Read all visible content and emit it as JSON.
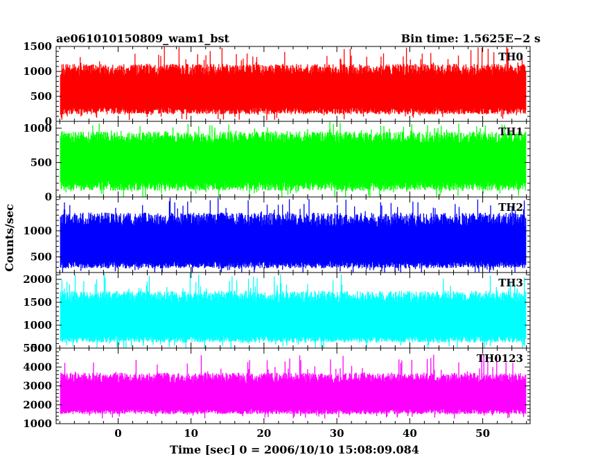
{
  "header": {
    "title": "ae061010150809_wam1_bst",
    "bin_time": "Bin time: 1.5625E−2 s"
  },
  "chart_data": {
    "type": "line",
    "subtype": "stacked light curves",
    "xlabel": "Time [sec] 0 = 2006/10/10 15:08:09.084",
    "ylabel": "Counts/sec",
    "xlim": [
      -8.5,
      56.5
    ],
    "data_x_range": [
      -7.9,
      55.9
    ],
    "x_major_ticks": [
      0,
      10,
      20,
      30,
      40,
      50
    ],
    "x_minor_step": 2,
    "bin_time_s": 0.015625,
    "series": [
      {
        "name": "TH0",
        "color": "#ff0000",
        "ylim": [
          0,
          1500
        ],
        "y_ticks": [
          0,
          500,
          1000,
          1500
        ],
        "y_minor_step": 100,
        "mean": 620,
        "low_envelope": 140,
        "typical_peak": 1150,
        "max": 1500
      },
      {
        "name": "TH1",
        "color": "#00ff00",
        "ylim": [
          0,
          1100
        ],
        "y_ticks": [
          0,
          500,
          1000
        ],
        "y_minor_step": 100,
        "mean": 560,
        "low_envelope": 90,
        "typical_peak": 950,
        "max": 1100
      },
      {
        "name": "TH2",
        "color": "#0000ff",
        "ylim": [
          200,
          1650
        ],
        "y_ticks": [
          500,
          1000
        ],
        "y_minor_step": 100,
        "mean": 740,
        "low_envelope": 280,
        "typical_peak": 1350,
        "max": 1650
      },
      {
        "name": "TH3",
        "color": "#00ffff",
        "ylim": [
          500,
          2150
        ],
        "y_ticks": [
          500,
          1000,
          1500,
          2000
        ],
        "y_minor_step": 100,
        "mean": 1150,
        "low_envelope": 620,
        "typical_peak": 1750,
        "max": 2150
      },
      {
        "name": "TH0123",
        "color": "#ff00ff",
        "ylim": [
          1000,
          5000
        ],
        "y_ticks": [
          1000,
          2000,
          3000,
          4000,
          5000
        ],
        "y_minor_step": 200,
        "mean": 2450,
        "low_envelope": 1500,
        "typical_peak": 3700,
        "max": 4650
      }
    ]
  }
}
